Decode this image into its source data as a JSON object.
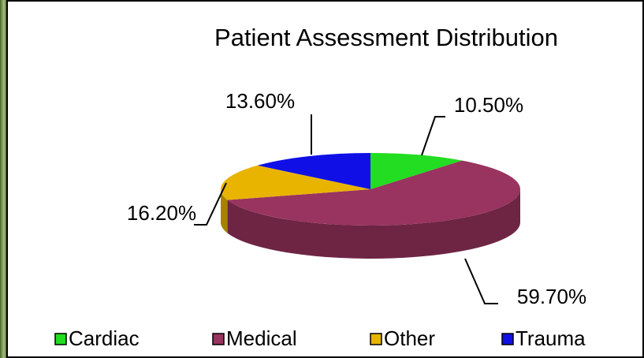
{
  "chart_data": {
    "type": "pie3d",
    "title": "Patient Assessment Distribution",
    "categories": [
      "Cardiac",
      "Medical",
      "Other",
      "Trauma"
    ],
    "values": [
      10.5,
      59.7,
      16.2,
      13.6
    ],
    "value_labels": [
      "10.50%",
      "59.70%",
      "16.20%",
      "13.60%"
    ],
    "colors": [
      "#22dd22",
      "#99335f",
      "#e8b400",
      "#1010e6"
    ],
    "legend": "bottom"
  }
}
